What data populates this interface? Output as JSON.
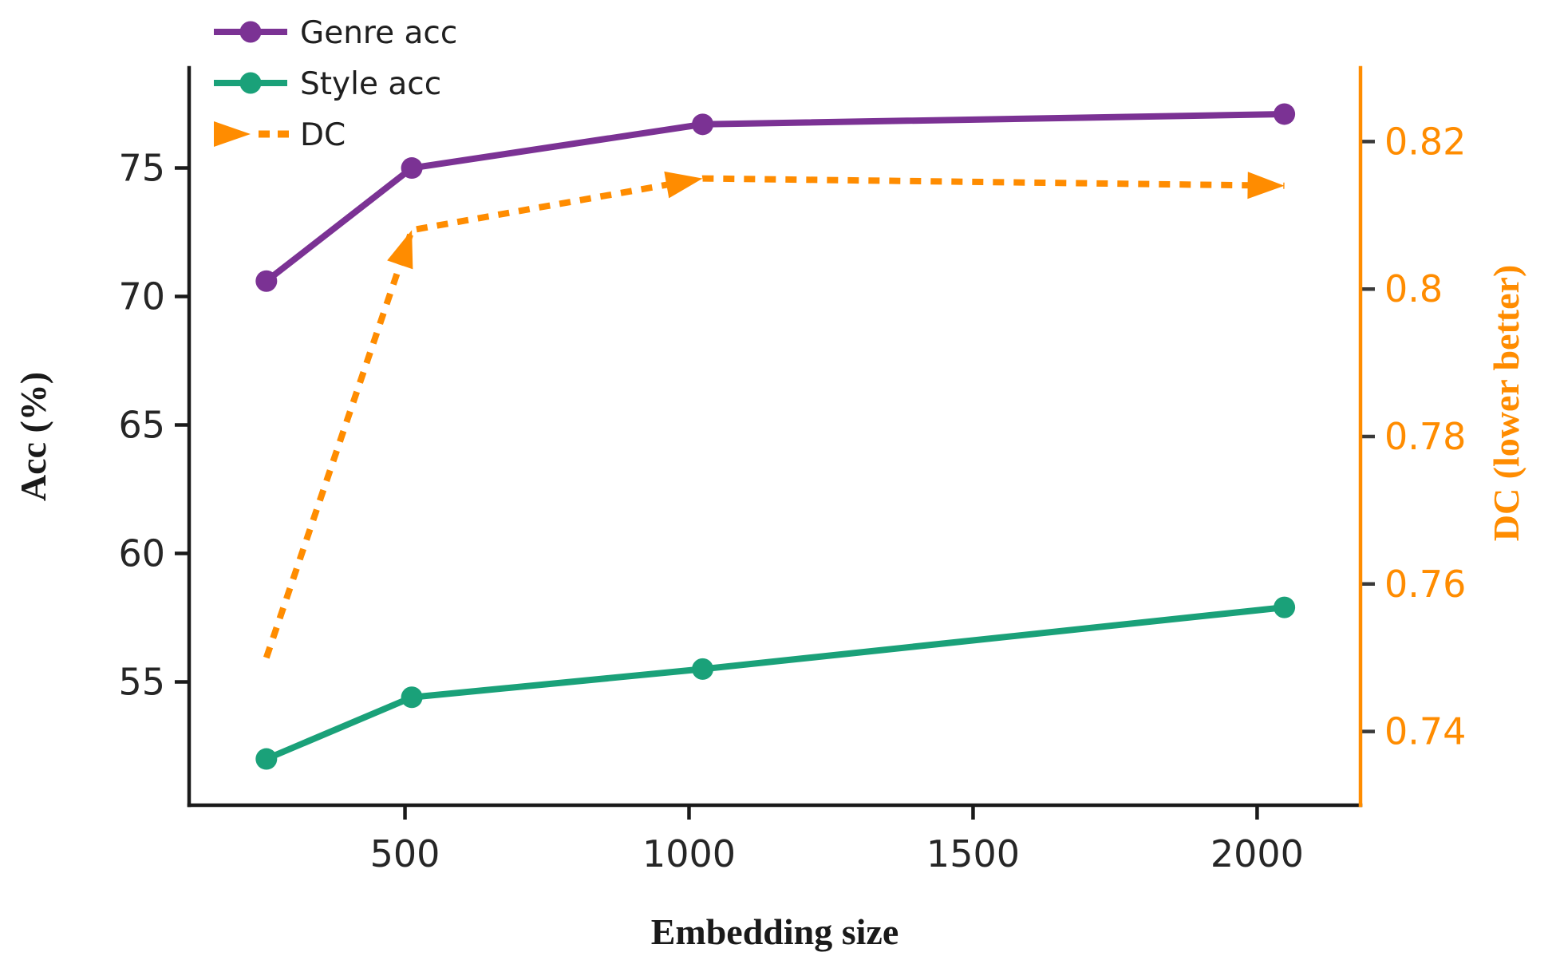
{
  "chart_data": {
    "type": "line",
    "title": "",
    "xlabel": "Embedding size",
    "ylabel_left": "Acc (%)",
    "ylabel_right": "DC (lower better)",
    "x": [
      256,
      512,
      1024,
      2048
    ],
    "series": [
      {
        "name": "Genre acc",
        "axis": "left",
        "color": "#7b3294",
        "line": "solid",
        "marker": "circle",
        "values": [
          70.6,
          75.0,
          76.7,
          77.1
        ]
      },
      {
        "name": "Style acc",
        "axis": "left",
        "color": "#1aa179",
        "line": "solid",
        "marker": "circle",
        "values": [
          52.0,
          54.4,
          55.5,
          57.9
        ]
      },
      {
        "name": "DC",
        "axis": "right",
        "color": "#ff8c00",
        "line": "dashed",
        "marker": "arrow",
        "values": [
          0.75,
          0.808,
          0.815,
          0.814
        ]
      }
    ],
    "x_ticks": [
      {
        "value": 500,
        "label": "500"
      },
      {
        "value": 1000,
        "label": "1000"
      },
      {
        "value": 1500,
        "label": "1500"
      },
      {
        "value": 2000,
        "label": "2000"
      }
    ],
    "y_ticks_left": [
      {
        "value": 55,
        "label": "55"
      },
      {
        "value": 60,
        "label": "60"
      },
      {
        "value": 65,
        "label": "65"
      },
      {
        "value": 70,
        "label": "70"
      },
      {
        "value": 75,
        "label": "75"
      }
    ],
    "y_ticks_right": [
      {
        "value": 0.74,
        "label": "0.74"
      },
      {
        "value": 0.76,
        "label": "0.76"
      },
      {
        "value": 0.78,
        "label": "0.78"
      },
      {
        "value": 0.8,
        "label": "0.8"
      },
      {
        "value": 0.82,
        "label": "0.82"
      }
    ],
    "xlim": [
      120,
      2182
    ],
    "ylim_left": [
      50.2,
      78.9
    ],
    "ylim_right": [
      0.73,
      0.83
    ],
    "grid": false,
    "legend": {
      "position": "upper-left",
      "items": [
        "Genre acc",
        "Style acc",
        "DC"
      ]
    },
    "colors": {
      "genre": "#7b3294",
      "style": "#1aa179",
      "dc": "#ff8c00",
      "axis_dark": "#1a1a1a",
      "tick_text": "#262626",
      "right_tick_mark": "#3a3a3a",
      "background": "#ffffff"
    }
  }
}
